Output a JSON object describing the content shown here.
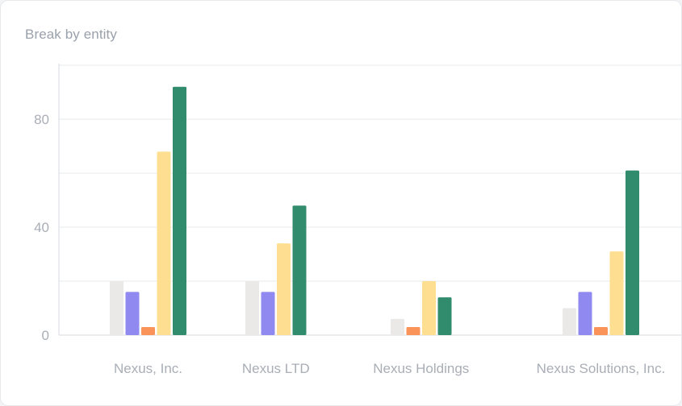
{
  "card": {
    "title": "Break by entity"
  },
  "chart_data": {
    "type": "bar",
    "title": "Break by entity",
    "xlabel": "",
    "ylabel": "",
    "ylim": [
      0,
      100
    ],
    "yticks": [
      0,
      40,
      80
    ],
    "grid": true,
    "legend": "none",
    "categories": [
      "Nexus, Inc.",
      "Nexus LTD",
      "Nexus Holdings",
      "Nexus Solutions, Inc."
    ],
    "series": [
      {
        "color": "#ebe8e8",
        "values": [
          20,
          20,
          6,
          10
        ]
      },
      {
        "color": "#9089f0",
        "values": [
          16,
          16,
          0,
          16
        ]
      },
      {
        "color": "#f9935a",
        "values": [
          3,
          0,
          3,
          3
        ]
      },
      {
        "color": "#fedf92",
        "values": [
          68,
          34,
          20,
          31
        ]
      },
      {
        "color": "#318b6d",
        "values": [
          92,
          48,
          14,
          61
        ]
      }
    ]
  }
}
